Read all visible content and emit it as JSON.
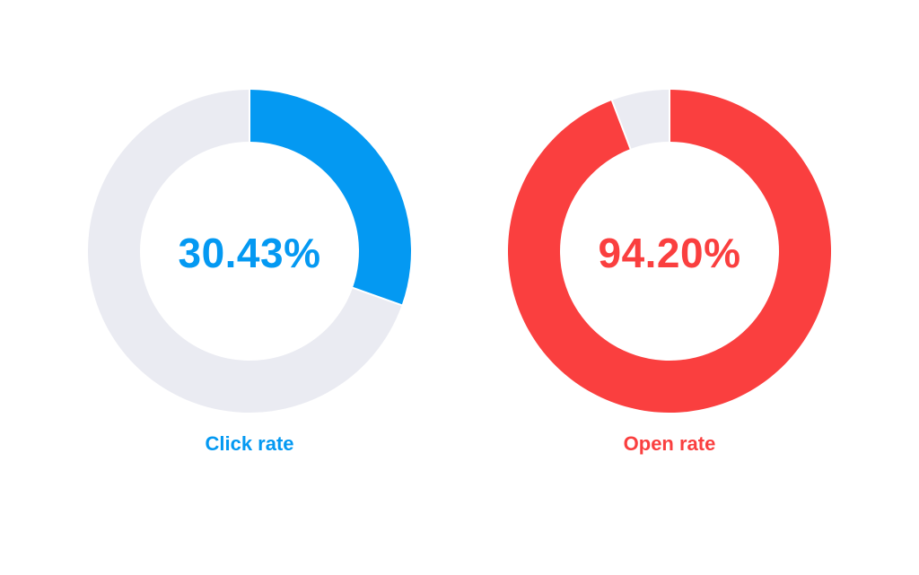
{
  "chart_data": [
    {
      "type": "pie",
      "variant": "donut",
      "title": "Click rate",
      "value_label": "30.43%",
      "value": 30.43,
      "max": 100,
      "fill_color": "#0499f2",
      "track_color": "#eaebf2"
    },
    {
      "type": "pie",
      "variant": "donut",
      "title": "Open rate",
      "value_label": "94.20%",
      "value": 94.2,
      "max": 100,
      "fill_color": "#fa3f3f",
      "track_color": "#eaebf2"
    }
  ]
}
